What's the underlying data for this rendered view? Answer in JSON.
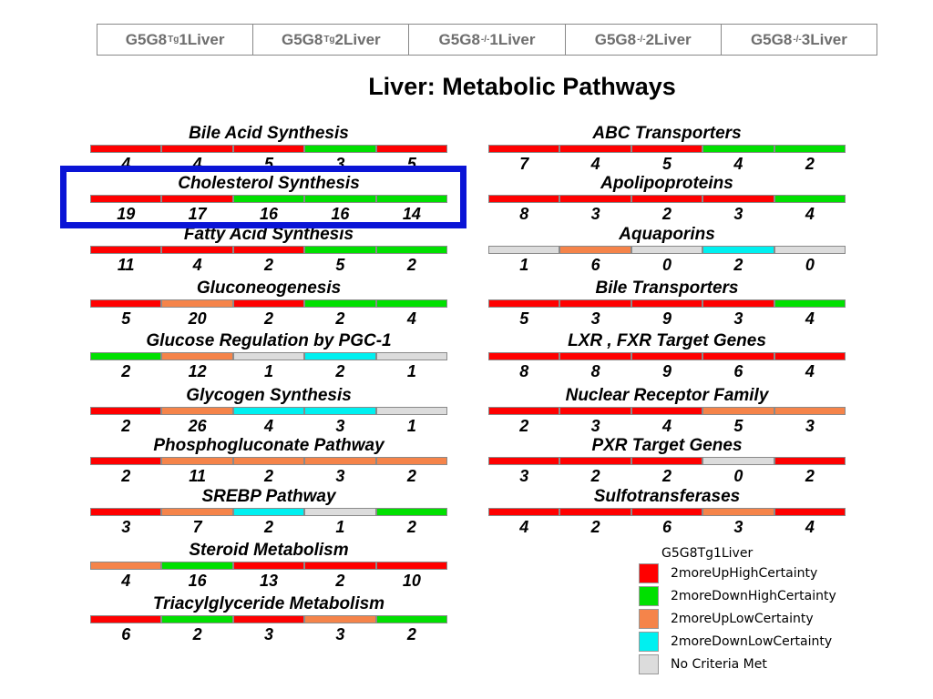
{
  "colors": {
    "up_high": "#ff0000",
    "down_high": "#00e000",
    "up_low": "#f5844a",
    "down_low": "#00f0f0",
    "none": "#dcdcdc",
    "highlight": "#0a14d6"
  },
  "header": {
    "columns": [
      {
        "base": "G5G8",
        "sup": "Tg",
        "rest": "1Liver"
      },
      {
        "base": "G5G8",
        "sup": "Tg",
        "rest": "2Liver"
      },
      {
        "base": "G5G8",
        "sup": "-/-",
        "rest": "1Liver"
      },
      {
        "base": "G5G8",
        "sup": "-/-",
        "rest": "2Liver"
      },
      {
        "base": "G5G8",
        "sup": "-/-",
        "rest": "3Liver"
      }
    ]
  },
  "title": "Liver: Metabolic Pathways",
  "left_pathways": [
    {
      "name": "Bile Acid Synthesis",
      "colors": [
        "up_high",
        "up_high",
        "up_high",
        "down_high",
        "up_high"
      ],
      "counts": [
        "4",
        "4",
        "5",
        "3",
        "5"
      ]
    },
    {
      "name": "Cholesterol Synthesis",
      "colors": [
        "up_high",
        "up_high",
        "down_high",
        "down_high",
        "down_high"
      ],
      "counts": [
        "19",
        "17",
        "16",
        "16",
        "14"
      ]
    },
    {
      "name": "Fatty Acid Synthesis",
      "colors": [
        "up_high",
        "up_high",
        "up_high",
        "down_high",
        "down_high"
      ],
      "counts": [
        "11",
        "4",
        "2",
        "5",
        "2"
      ]
    },
    {
      "name": "Gluconeogenesis",
      "colors": [
        "up_high",
        "up_low",
        "up_high",
        "down_high",
        "down_high"
      ],
      "counts": [
        "5",
        "20",
        "2",
        "2",
        "4"
      ]
    },
    {
      "name": "Glucose Regulation by PGC-1",
      "colors": [
        "down_high",
        "up_low",
        "none",
        "down_low",
        "none"
      ],
      "counts": [
        "2",
        "12",
        "1",
        "2",
        "1"
      ]
    },
    {
      "name": "Glycogen Synthesis",
      "colors": [
        "up_high",
        "up_low",
        "down_low",
        "down_low",
        "none"
      ],
      "counts": [
        "2",
        "26",
        "4",
        "3",
        "1"
      ]
    },
    {
      "name": "Phosphogluconate Pathway",
      "colors": [
        "up_high",
        "up_low",
        "up_low",
        "up_low",
        "up_low"
      ],
      "counts": [
        "2",
        "11",
        "2",
        "3",
        "2"
      ]
    },
    {
      "name": "SREBP Pathway",
      "colors": [
        "up_high",
        "up_low",
        "down_low",
        "none",
        "down_high"
      ],
      "counts": [
        "3",
        "7",
        "2",
        "1",
        "2"
      ]
    },
    {
      "name": "Steroid Metabolism",
      "colors": [
        "up_low",
        "down_high",
        "up_high",
        "up_high",
        "up_high"
      ],
      "counts": [
        "4",
        "16",
        "13",
        "2",
        "10"
      ]
    },
    {
      "name": "Triacylglyceride Metabolism",
      "colors": [
        "up_high",
        "down_high",
        "up_high",
        "up_low",
        "down_high"
      ],
      "counts": [
        "6",
        "2",
        "3",
        "3",
        "2"
      ]
    }
  ],
  "right_pathways": [
    {
      "name": "ABC  Transporters",
      "colors": [
        "up_high",
        "up_high",
        "up_high",
        "down_high",
        "down_high"
      ],
      "counts": [
        "7",
        "4",
        "5",
        "4",
        "2"
      ]
    },
    {
      "name": "Apolipoproteins",
      "colors": [
        "up_high",
        "up_high",
        "up_high",
        "up_high",
        "down_high"
      ],
      "counts": [
        "8",
        "3",
        "2",
        "3",
        "4"
      ]
    },
    {
      "name": "Aquaporins",
      "colors": [
        "none",
        "up_low",
        "none",
        "down_low",
        "none"
      ],
      "counts": [
        "1",
        "6",
        "0",
        "2",
        "0"
      ]
    },
    {
      "name": "Bile Transporters",
      "colors": [
        "up_high",
        "up_high",
        "up_high",
        "up_high",
        "down_high"
      ],
      "counts": [
        "5",
        "3",
        "9",
        "3",
        "4"
      ]
    },
    {
      "name": "LXR , FXR Target Genes",
      "colors": [
        "up_high",
        "up_high",
        "up_high",
        "up_high",
        "up_high"
      ],
      "counts": [
        "8",
        "8",
        "9",
        "6",
        "4"
      ]
    },
    {
      "name": "Nuclear Receptor Family",
      "colors": [
        "up_high",
        "up_high",
        "up_high",
        "up_low",
        "up_low"
      ],
      "counts": [
        "2",
        "3",
        "4",
        "5",
        "3"
      ]
    },
    {
      "name": "PXR Target Genes",
      "colors": [
        "up_high",
        "up_high",
        "up_high",
        "none",
        "up_high"
      ],
      "counts": [
        "3",
        "2",
        "2",
        "0",
        "2"
      ]
    },
    {
      "name": "Sulfotransferases",
      "colors": [
        "up_high",
        "up_high",
        "up_high",
        "up_low",
        "up_high"
      ],
      "counts": [
        "4",
        "2",
        "6",
        "3",
        "4"
      ]
    }
  ],
  "legend": {
    "title": "G5G8Tg1Liver",
    "items": [
      {
        "color_key": "up_high",
        "label": "2moreUpHighCertainty"
      },
      {
        "color_key": "down_high",
        "label": "2moreDownHighCertainty"
      },
      {
        "color_key": "up_low",
        "label": "2moreUpLowCertainty"
      },
      {
        "color_key": "down_low",
        "label": "2moreDownLowCertainty"
      },
      {
        "color_key": "none",
        "label": "No Criteria Met"
      }
    ]
  }
}
